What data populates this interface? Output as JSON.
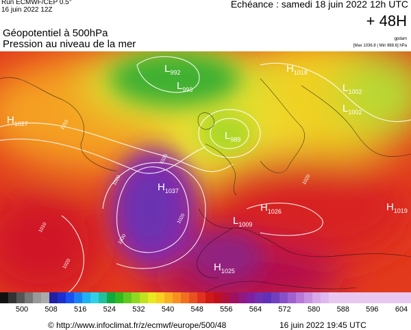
{
  "header": {
    "run": "Run ECMWF/CEP 0.5°",
    "run_date": "16 juin 2022 12Z",
    "echeance": "Echéance : samedi 18 juin 2022 12h UTC",
    "lead": "+ 48H",
    "title_1": "Géopotentiel à 500hPa",
    "title_2": "Pression au niveau de la mer",
    "unit": "gpdam",
    "range": "[Max 1036.8 | Min 988.6] hPa"
  },
  "map": {
    "centers": [
      {
        "type": "L",
        "value": "992"
      },
      {
        "type": "L",
        "value": "993"
      },
      {
        "type": "H",
        "value": "1027"
      },
      {
        "type": "L",
        "value": "989"
      },
      {
        "type": "H",
        "value": "1037"
      },
      {
        "type": "H",
        "value": "1026"
      },
      {
        "type": "L",
        "value": "1009"
      },
      {
        "type": "H",
        "value": "1025"
      },
      {
        "type": "H",
        "value": "1018"
      },
      {
        "type": "L",
        "value": "1002"
      },
      {
        "type": "L",
        "value": "1002"
      },
      {
        "type": "H",
        "value": "1019"
      }
    ],
    "isobar_labels": [
      "1010",
      "1020",
      "1030",
      "1020",
      "1010",
      "1020",
      "1030",
      "1020"
    ]
  },
  "colorbar": {
    "ticks": [
      500,
      508,
      516,
      524,
      532,
      540,
      548,
      556,
      564,
      572,
      580,
      588,
      596,
      604
    ]
  },
  "footer": {
    "url": "© http://www.infoclimat.fr/z/ecmwf/europe/500/48",
    "date": "16 juin 2022 19:45 UTC"
  }
}
